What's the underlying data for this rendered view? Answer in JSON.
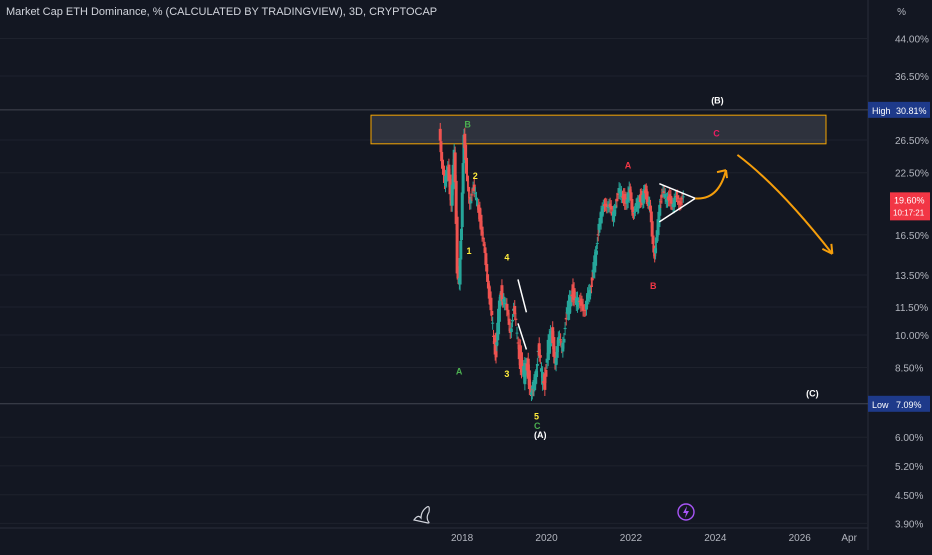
{
  "chart_data": {
    "type": "candlestick",
    "title": "Market Cap ETH Dominance, % (CALCULATED BY TRADINGVIEW), 3D, CRYPTOCAP",
    "y_unit": "%",
    "y_scale": "log",
    "ylim": [
      3.8,
      50
    ],
    "y_ticks": [
      "44.00%",
      "36.50%",
      "26.50%",
      "22.50%",
      "16.50%",
      "13.50%",
      "11.50%",
      "10.00%",
      "8.50%",
      "6.00%",
      "5.20%",
      "4.50%",
      "3.90%"
    ],
    "x_ticks": [
      "2018",
      "2020",
      "2022",
      "2024",
      "2026",
      "Apr"
    ],
    "x_tick_years": [
      2018,
      2020,
      2022,
      2024,
      2026,
      2027.25
    ],
    "high_label": "High",
    "high_value": "30.81%",
    "low_label": "Low",
    "low_value": "7.09%",
    "current_value": "19.60%",
    "countdown": "10:17:21",
    "price_series": [
      [
        2017.5,
        28.0
      ],
      [
        2017.55,
        24.0
      ],
      [
        2017.62,
        21.0
      ],
      [
        2017.7,
        23.5
      ],
      [
        2017.78,
        19.0
      ],
      [
        2017.85,
        25.0
      ],
      [
        2017.92,
        14.0
      ],
      [
        2017.97,
        13.0
      ],
      [
        2018.02,
        17.0
      ],
      [
        2018.08,
        27.5
      ],
      [
        2018.14,
        22.0
      ],
      [
        2018.22,
        19.5
      ],
      [
        2018.3,
        21.0
      ],
      [
        2018.38,
        19.5
      ],
      [
        2018.46,
        18.0
      ],
      [
        2018.54,
        16.0
      ],
      [
        2018.6,
        14.0
      ],
      [
        2018.66,
        13.0
      ],
      [
        2018.72,
        11.0
      ],
      [
        2018.78,
        10.0
      ],
      [
        2018.84,
        9.2
      ],
      [
        2018.9,
        11.0
      ],
      [
        2018.96,
        12.5
      ],
      [
        2019.02,
        12.0
      ],
      [
        2019.1,
        11.0
      ],
      [
        2019.18,
        10.5
      ],
      [
        2019.26,
        11.2
      ],
      [
        2019.34,
        10.0
      ],
      [
        2019.42,
        8.8
      ],
      [
        2019.5,
        8.2
      ],
      [
        2019.58,
        8.5
      ],
      [
        2019.66,
        7.8
      ],
      [
        2019.72,
        7.2
      ],
      [
        2019.78,
        8.5
      ],
      [
        2019.84,
        9.2
      ],
      [
        2019.92,
        8.2
      ],
      [
        2020.0,
        8.0
      ],
      [
        2020.08,
        9.5
      ],
      [
        2020.16,
        10.0
      ],
      [
        2020.24,
        9.0
      ],
      [
        2020.32,
        9.5
      ],
      [
        2020.4,
        9.6
      ],
      [
        2020.48,
        10.5
      ],
      [
        2020.56,
        11.5
      ],
      [
        2020.64,
        12.5
      ],
      [
        2020.72,
        12.0
      ],
      [
        2020.8,
        11.5
      ],
      [
        2020.88,
        12.0
      ],
      [
        2020.96,
        11.0
      ],
      [
        2021.04,
        12.5
      ],
      [
        2021.1,
        13.0
      ],
      [
        2021.16,
        14.0
      ],
      [
        2021.22,
        15.5
      ],
      [
        2021.28,
        17.5
      ],
      [
        2021.36,
        18.5
      ],
      [
        2021.44,
        19.5
      ],
      [
        2021.52,
        19.0
      ],
      [
        2021.6,
        18.0
      ],
      [
        2021.68,
        19.5
      ],
      [
        2021.76,
        20.5
      ],
      [
        2021.84,
        20.0
      ],
      [
        2021.92,
        19.5
      ],
      [
        2022.0,
        20.5
      ],
      [
        2022.06,
        19.0
      ],
      [
        2022.12,
        18.5
      ],
      [
        2022.18,
        19.0
      ],
      [
        2022.24,
        20.0
      ],
      [
        2022.3,
        19.5
      ],
      [
        2022.36,
        20.5
      ],
      [
        2022.42,
        20.0
      ],
      [
        2022.48,
        19.0
      ],
      [
        2022.54,
        16.5
      ],
      [
        2022.6,
        15.0
      ],
      [
        2022.66,
        16.5
      ],
      [
        2022.72,
        19.5
      ],
      [
        2022.8,
        20.5
      ],
      [
        2022.88,
        19.5
      ],
      [
        2022.96,
        20.0
      ],
      [
        2023.04,
        19.0
      ],
      [
        2023.12,
        20.0
      ],
      [
        2023.2,
        19.5
      ],
      [
        2023.28,
        19.6
      ]
    ]
  },
  "annotations": {
    "wave_labels": [
      {
        "text": "1",
        "color": "#ffeb3b",
        "x": 2018.2,
        "y": 15.0
      },
      {
        "text": "2",
        "color": "#ffeb3b",
        "x": 2018.35,
        "y": 21.8
      },
      {
        "text": "3",
        "color": "#ffeb3b",
        "x": 2019.1,
        "y": 8.1
      },
      {
        "text": "4",
        "color": "#ffeb3b",
        "x": 2019.1,
        "y": 14.5
      },
      {
        "text": "5",
        "color": "#ffeb3b",
        "x": 2019.8,
        "y": 6.55
      },
      {
        "text": "A",
        "color": "#4caf50",
        "x": 2017.95,
        "y": 8.2
      },
      {
        "text": "B",
        "color": "#4caf50",
        "x": 2018.15,
        "y": 28.2
      },
      {
        "text": "C",
        "color": "#4caf50",
        "x": 2019.8,
        "y": 6.25
      },
      {
        "text": "A",
        "color": "#f23645",
        "x": 2021.95,
        "y": 23.0
      },
      {
        "text": "B",
        "color": "#f23645",
        "x": 2022.55,
        "y": 12.6
      },
      {
        "text": "C",
        "color": "#e91e63",
        "x": 2024.05,
        "y": 27.0
      },
      {
        "text": "(A)",
        "color": "#ffffff",
        "x": 2019.8,
        "y": 5.97
      },
      {
        "text": "(B)",
        "color": "#ffffff",
        "x": 2024.0,
        "y": 31.8
      },
      {
        "text": "(C)",
        "color": "#ffffff",
        "x": 2026.25,
        "y": 7.35
      }
    ]
  },
  "colors": {
    "background": "#131722",
    "up": "#26a69a",
    "down": "#ef5350",
    "grid": "#1e222d",
    "arrow": "#f59e0b",
    "zone_border": "#f7a600",
    "high_low_badge": "#1e3a8a",
    "current_badge": "#f23645",
    "flash_icon": "#a855f7"
  },
  "icons": [
    "tradingview-logo-icon",
    "flash-icon"
  ]
}
